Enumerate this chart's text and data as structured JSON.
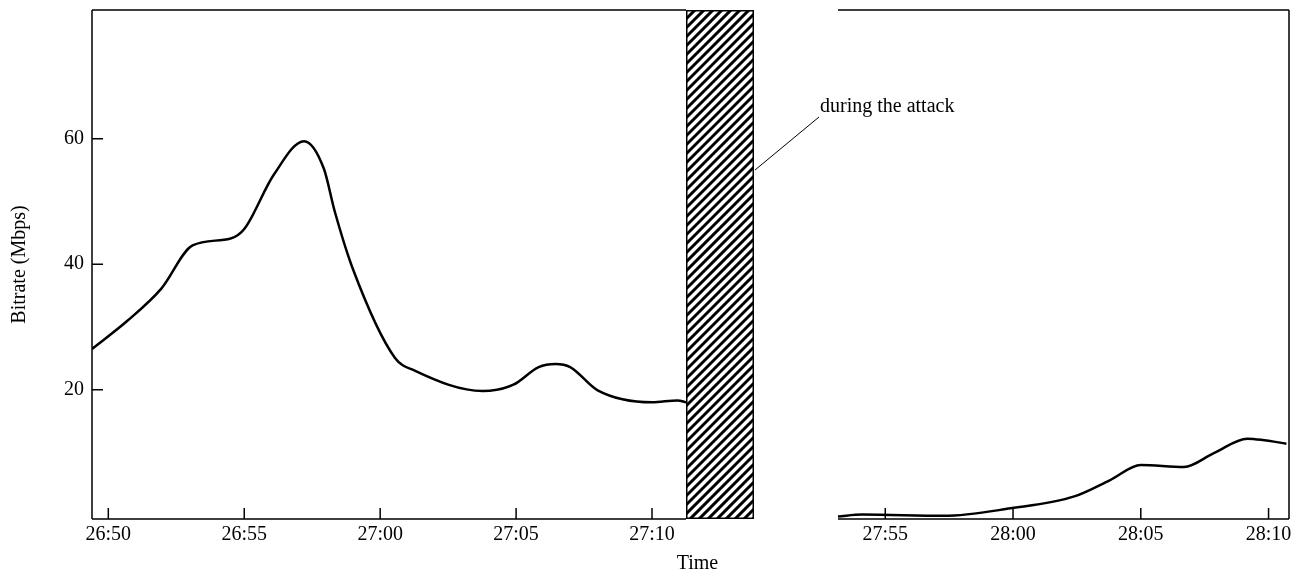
{
  "chart_data": [
    {
      "type": "line",
      "xlabel": "Time",
      "ylabel": "Bitrate (Mbps)",
      "series": [
        {
          "color": "#000000",
          "x": [
            1609.4,
            1610.68,
            1611.95,
            1613.1,
            1614.5,
            1615.0,
            1616.08,
            1617.2,
            1617.93,
            1618.33,
            1619.0,
            1620.54,
            1621.29,
            1623.77,
            1624.9,
            1625.83,
            1626.45,
            1626.99,
            1628.0,
            1630.0,
            1630.94,
            1631.25
          ],
          "values": [
            26.5,
            30.9,
            36.1,
            43.0,
            44.1,
            45.6,
            54.2,
            59.6,
            55.2,
            48.4,
            39.2,
            25.1,
            23.0,
            19.8,
            20.8,
            23.6,
            24.1,
            23.6,
            19.9,
            18.0,
            18.3,
            18.0
          ]
        }
      ],
      "xlim": [
        1609.4,
        1631.25
      ],
      "ylim": [
        -0.6,
        80.5
      ],
      "xticks": [
        {
          "value": 1610,
          "label": "26:50"
        },
        {
          "value": 1615,
          "label": "26:55"
        },
        {
          "value": 1620,
          "label": "27:00"
        },
        {
          "value": 1625,
          "label": "27:05"
        },
        {
          "value": 1630,
          "label": "27:10"
        }
      ],
      "yticks": [
        20,
        40,
        60
      ],
      "line_style": "solid"
    },
    {
      "type": "other",
      "annotations": [
        "during the attack"
      ]
    },
    {
      "type": "line",
      "series": [
        {
          "color": "#000000",
          "x": [
            1673.15,
            1674.1,
            1677.3,
            1679.9,
            1682.4,
            1683.8,
            1685.0,
            1686.69,
            1687.86,
            1689.17,
            1689.76,
            1690.7
          ],
          "values": [
            -0.2,
            0.1,
            -0.1,
            1.1,
            3.0,
            5.6,
            8.0,
            7.7,
            9.9,
            12.2,
            12.0,
            11.4
          ]
        }
      ],
      "xlim": [
        1673.15,
        1690.8
      ],
      "ylim": [
        -0.6,
        80.5
      ],
      "xticks": [
        {
          "value": 1675,
          "label": "27:55"
        },
        {
          "value": 1680,
          "label": "28:00"
        },
        {
          "value": 1685,
          "label": "28:05"
        },
        {
          "value": 1690,
          "label": "28:10"
        }
      ],
      "tick_labels": "x",
      "line_style": "solid"
    }
  ]
}
